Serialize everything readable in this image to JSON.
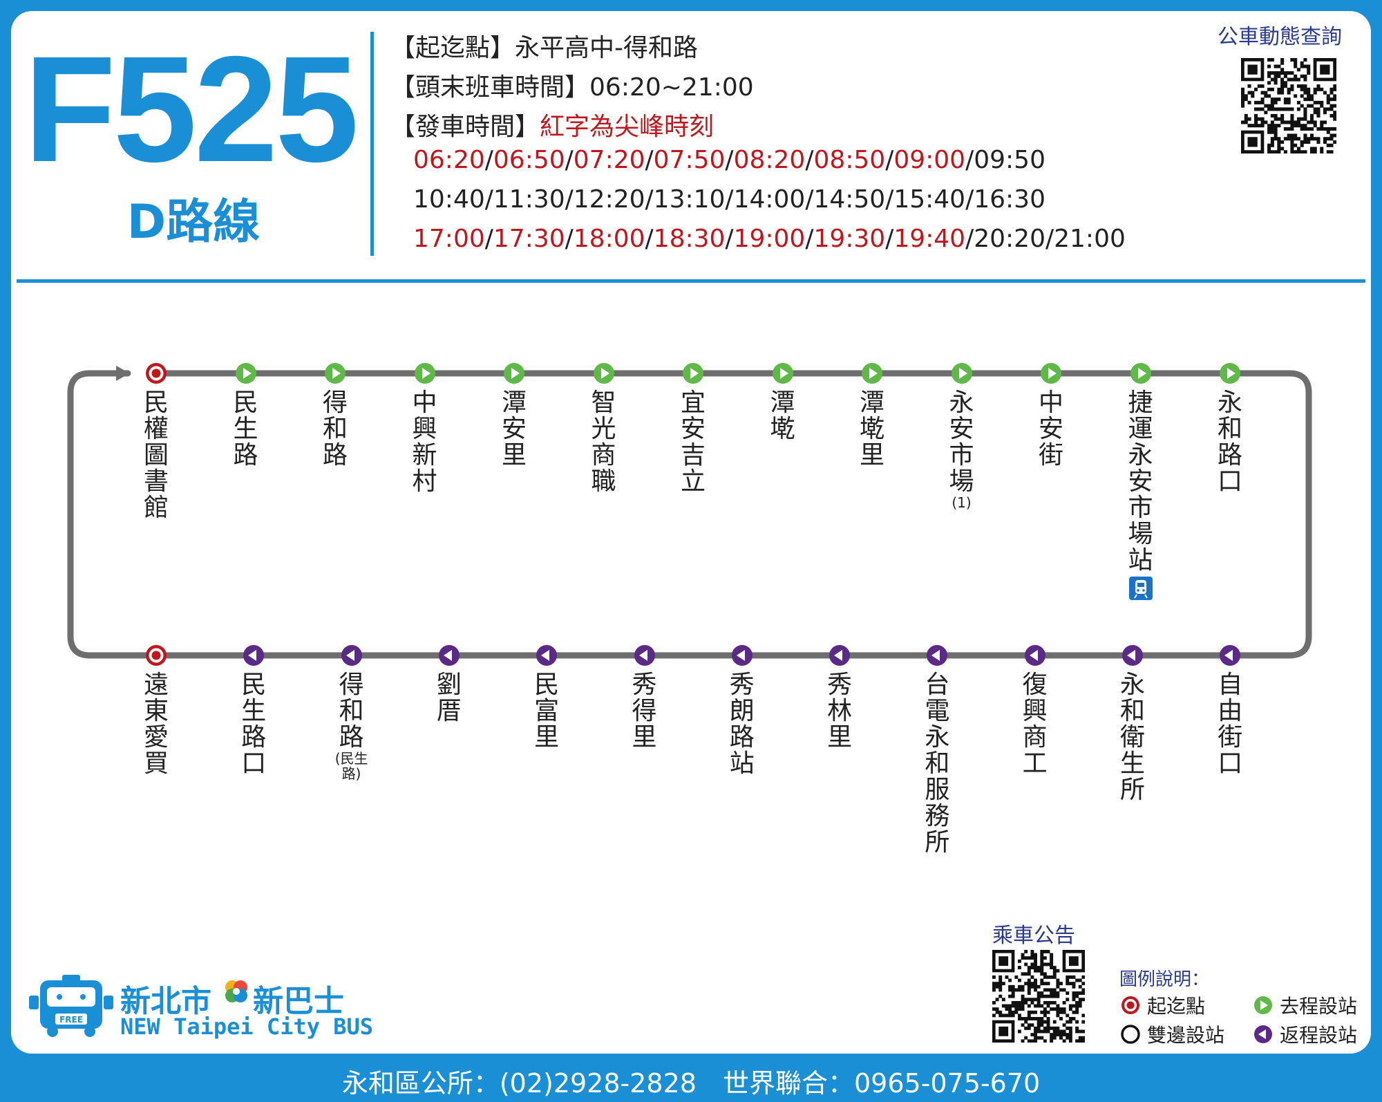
{
  "header": {
    "route_number": "F525",
    "route_subtitle": "D路線",
    "origin_dest_label": "【起迄點】",
    "origin_dest_value": "永平高中-得和路",
    "first_last_label": "【頭末班車時間】",
    "first_last_value": "06:20~21:00",
    "departure_label": "【發車時間】",
    "departure_note": "紅字為尖峰時刻"
  },
  "timetable": [
    [
      {
        "t": "06:20",
        "peak": true
      },
      {
        "t": "06:50",
        "peak": true
      },
      {
        "t": "07:20",
        "peak": true
      },
      {
        "t": "07:50",
        "peak": true
      },
      {
        "t": "08:20",
        "peak": true
      },
      {
        "t": "08:50",
        "peak": true
      },
      {
        "t": "09:00",
        "peak": true
      },
      {
        "t": "09:50",
        "peak": false
      }
    ],
    [
      {
        "t": "10:40",
        "peak": false
      },
      {
        "t": "11:30",
        "peak": false
      },
      {
        "t": "12:20",
        "peak": false
      },
      {
        "t": "13:10",
        "peak": false
      },
      {
        "t": "14:00",
        "peak": false
      },
      {
        "t": "14:50",
        "peak": false
      },
      {
        "t": "15:40",
        "peak": false
      },
      {
        "t": "16:30",
        "peak": false
      }
    ],
    [
      {
        "t": "17:00",
        "peak": true
      },
      {
        "t": "17:30",
        "peak": true
      },
      {
        "t": "18:00",
        "peak": true
      },
      {
        "t": "18:30",
        "peak": true
      },
      {
        "t": "19:00",
        "peak": true
      },
      {
        "t": "19:30",
        "peak": true
      },
      {
        "t": "19:40",
        "peak": true
      },
      {
        "t": "20:20",
        "peak": false
      },
      {
        "t": "21:00",
        "peak": false
      }
    ]
  ],
  "qr_top_label": "公車動態查詢",
  "qr_bottom_label": "乘車公告",
  "colors": {
    "blue": "#1a8fd6",
    "red": "#c0161d",
    "green": "#5fb848",
    "purple": "#5b2a86",
    "line": "#6e6e6e"
  },
  "outbound_stops": [
    {
      "name": "民權圖書館",
      "type": "terminal"
    },
    {
      "name": "民生路",
      "type": "outbound"
    },
    {
      "name": "得和路",
      "type": "outbound"
    },
    {
      "name": "中興新村",
      "type": "outbound"
    },
    {
      "name": "潭安里",
      "type": "outbound"
    },
    {
      "name": "智光商職",
      "type": "outbound"
    },
    {
      "name": "宜安吉立",
      "type": "outbound"
    },
    {
      "name": "潭墘",
      "type": "outbound"
    },
    {
      "name": "潭墘里",
      "type": "outbound"
    },
    {
      "name": "永安市場",
      "note": "(1)",
      "type": "outbound"
    },
    {
      "name": "中安街",
      "type": "outbound"
    },
    {
      "name": "捷運永安市場站",
      "type": "outbound",
      "metro": true
    },
    {
      "name": "永和路口",
      "type": "outbound"
    }
  ],
  "return_stops": [
    {
      "name": "遠東愛買",
      "type": "terminal"
    },
    {
      "name": "民生路口",
      "type": "return"
    },
    {
      "name": "得和路",
      "note": "(民生路)",
      "type": "return"
    },
    {
      "name": "劉厝",
      "type": "return"
    },
    {
      "name": "民富里",
      "type": "return"
    },
    {
      "name": "秀得里",
      "type": "return"
    },
    {
      "name": "秀朗路站",
      "type": "return"
    },
    {
      "name": "秀林里",
      "type": "return"
    },
    {
      "name": "台電永和服務所",
      "type": "return"
    },
    {
      "name": "復興商工",
      "type": "return"
    },
    {
      "name": "永和衛生所",
      "type": "return"
    },
    {
      "name": "自由街口",
      "type": "return"
    }
  ],
  "legend": {
    "title": "圖例說明：",
    "terminal": "起迄點",
    "outbound": "去程設站",
    "both": "雙邊設站",
    "return": "返程設站"
  },
  "brand": {
    "cn_left": "新北市",
    "cn_right": "新巴士",
    "en": "NEW Taipei City BUS",
    "bus_plate": "FREE"
  },
  "footer": "永和區公所：(02)2928-2828　世界聯合：0965-075-670"
}
